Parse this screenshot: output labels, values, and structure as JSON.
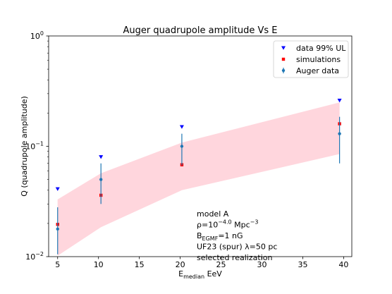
{
  "chart_data": {
    "type": "scatter",
    "title": "Auger quadrupole amplitude Vs E",
    "xlabel": {
      "main": "E",
      "sub": "median",
      "rest": " EeV"
    },
    "ylabel": "Q (quadrupole amplitude)",
    "xlim": [
      3.9,
      41.0
    ],
    "ylim": [
      0.01,
      1.0
    ],
    "yscale": "log",
    "grid": false,
    "legend_position": "top-right",
    "x_ticks": [
      5,
      10,
      15,
      20,
      25,
      30,
      35,
      40
    ],
    "x_tick_labels": [
      "5",
      "10",
      "15",
      "20",
      "25",
      "30",
      "35",
      "40"
    ],
    "y_ticks": [
      {
        "value": 0.01,
        "base": "10",
        "exp": "−2"
      },
      {
        "value": 0.1,
        "base": "10",
        "exp": "−1"
      },
      {
        "value": 1.0,
        "base": "10",
        "exp": "0"
      }
    ],
    "band": {
      "color": "#ffc0cb",
      "x": [
        5.0,
        10.3,
        20.2,
        39.5
      ],
      "lower": [
        0.0102,
        0.0185,
        0.04,
        0.085
      ],
      "upper": [
        0.033,
        0.057,
        0.108,
        0.25
      ]
    },
    "series": [
      {
        "name": "data 99% UL",
        "marker": "triangle-down",
        "color": "#0000ff",
        "x": [
          5.0,
          10.3,
          20.2,
          39.5
        ],
        "y": [
          0.041,
          0.08,
          0.15,
          0.26
        ]
      },
      {
        "name": "simulations",
        "marker": "square",
        "color": "#ff0000",
        "x": [
          5.0,
          10.3,
          20.2,
          39.5
        ],
        "y": [
          0.0196,
          0.036,
          0.068,
          0.16
        ]
      },
      {
        "name": "Auger data",
        "marker": "circle-errorbar",
        "color": "#1f77b4",
        "x": [
          5.0,
          10.3,
          20.2,
          39.5
        ],
        "y": [
          0.0178,
          0.05,
          0.1,
          0.13
        ],
        "y_low": [
          0.0105,
          0.03,
          0.067,
          0.07
        ],
        "y_high": [
          0.028,
          0.07,
          0.13,
          0.185
        ]
      }
    ],
    "annotation_lines": [
      {
        "parts": [
          {
            "t": "model A"
          }
        ]
      },
      {
        "parts": [
          {
            "t": "ρ=10"
          },
          {
            "t": "−4.0",
            "sup": true
          },
          {
            "t": " Mpc"
          },
          {
            "t": "−3",
            "sup": true
          }
        ]
      },
      {
        "parts": [
          {
            "t": "B"
          },
          {
            "t": "EGMF",
            "sub": true
          },
          {
            "t": "=1 nG"
          }
        ]
      },
      {
        "parts": [
          {
            "t": "UF23 (spur) λ=50 pc"
          }
        ]
      },
      {
        "parts": [
          {
            "t": "selected realization"
          }
        ]
      }
    ]
  }
}
